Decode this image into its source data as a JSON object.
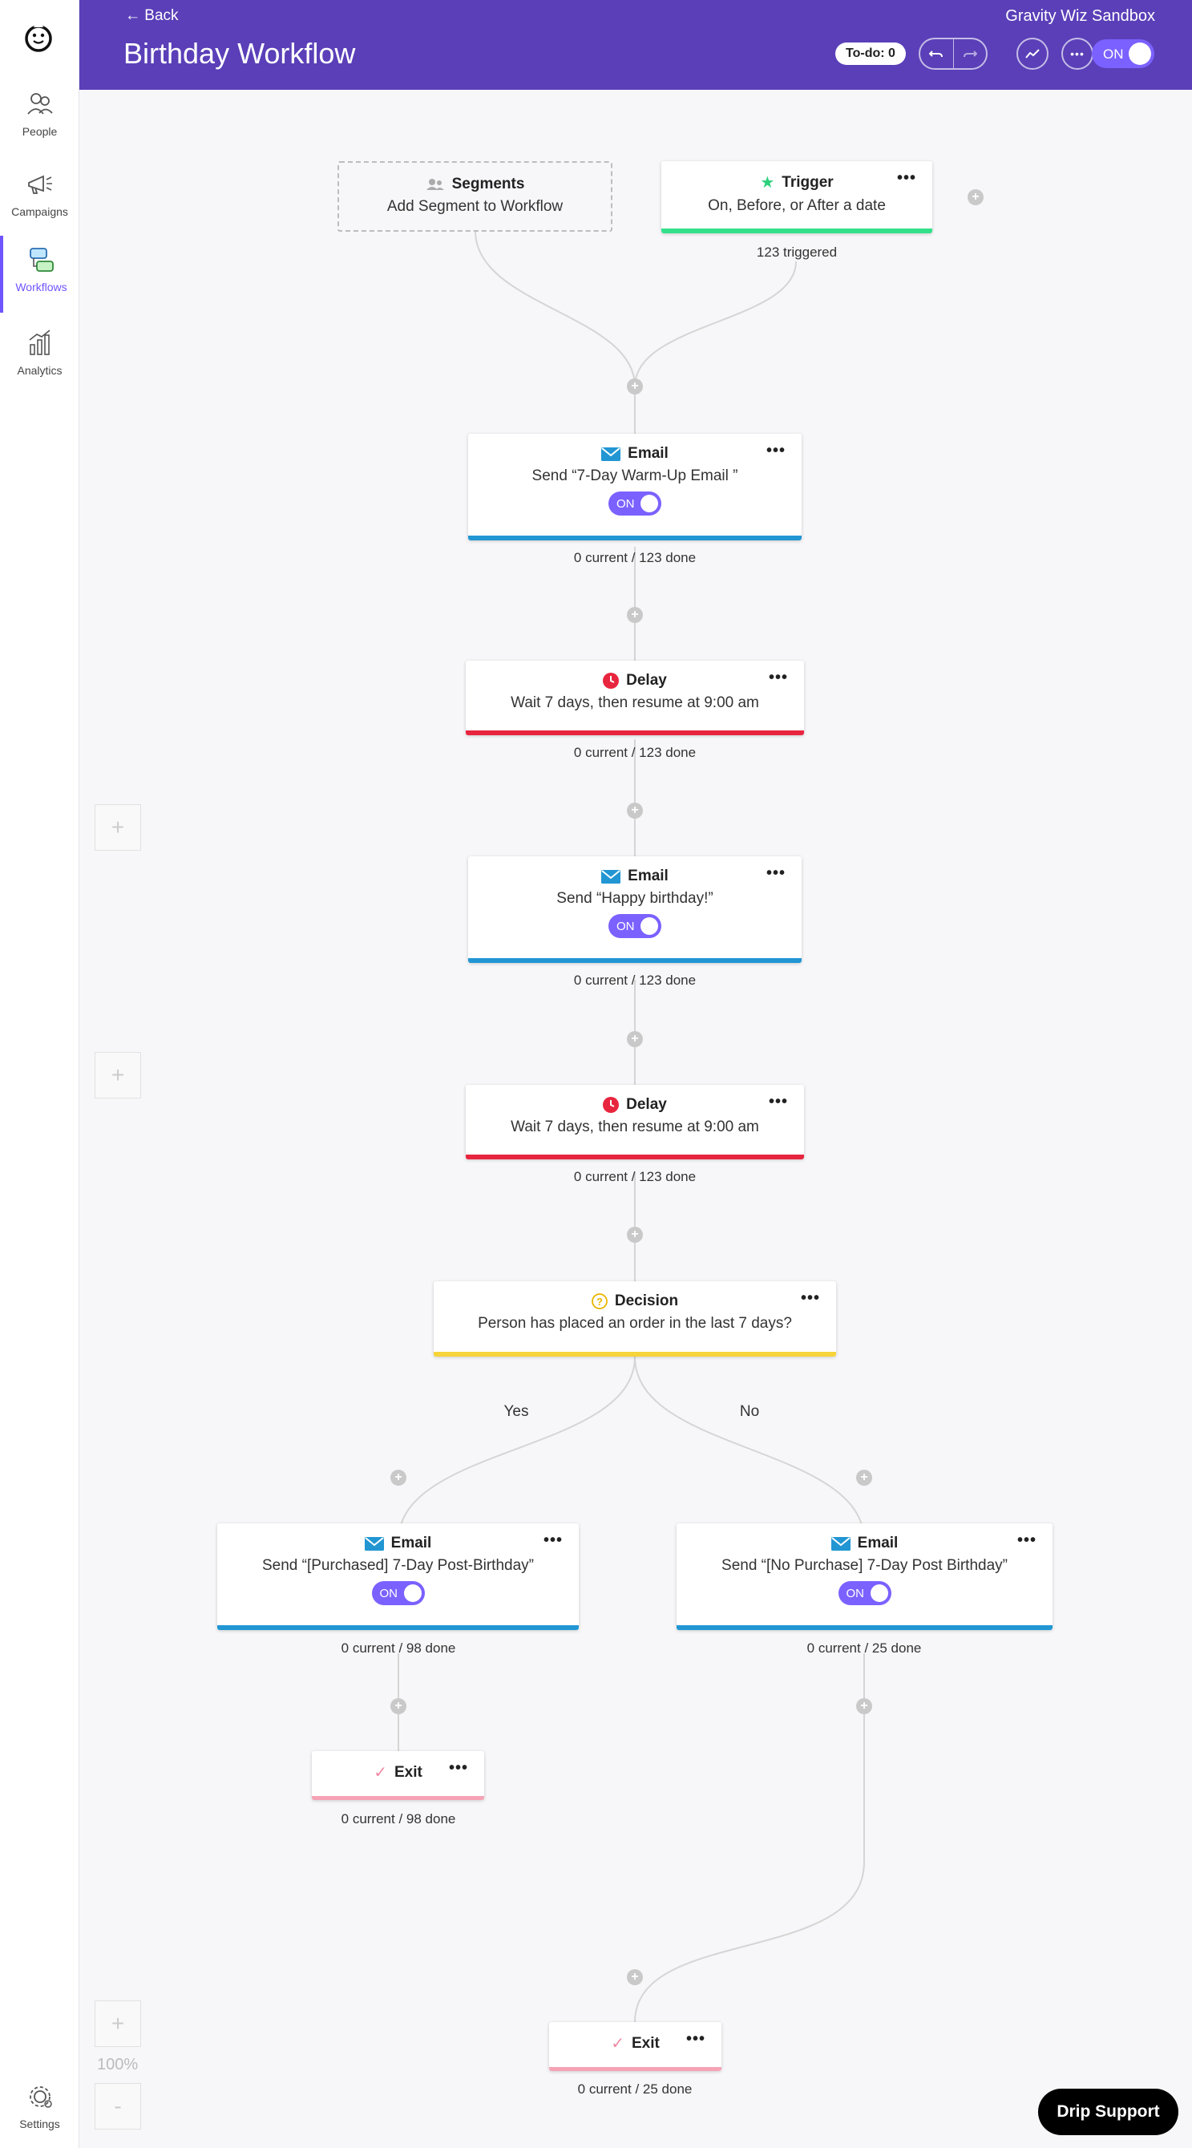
{
  "sidebar": {
    "items": [
      {
        "label": "People",
        "icon": "people-icon"
      },
      {
        "label": "Campaigns",
        "icon": "megaphone-icon"
      },
      {
        "label": "Workflows",
        "icon": "workflows-icon"
      },
      {
        "label": "Analytics",
        "icon": "analytics-icon"
      }
    ],
    "settings_label": "Settings"
  },
  "header": {
    "back": "Back",
    "title": "Birthday Workflow",
    "account": "Gravity Wiz Sandbox",
    "todo": "To-do: 0",
    "toggle": "ON"
  },
  "colors": {
    "header": "#5a3fb8",
    "accent": "#7b61ff",
    "email": "#2196d3",
    "delay": "#e8253e",
    "trigger": "#34e08a",
    "decision": "#f6d43a",
    "exit": "#f5a3b5"
  },
  "workflow": {
    "segments": {
      "title": "Segments",
      "subtitle": "Add Segment to Workflow"
    },
    "trigger": {
      "title": "Trigger",
      "subtitle": "On, Before, or After a date",
      "stat": "123 triggered"
    },
    "email1": {
      "title": "Email",
      "subtitle": "Send “7-Day Warm-Up Email ”",
      "toggle": "ON",
      "stat": "0 current / 123 done"
    },
    "delay1": {
      "title": "Delay",
      "subtitle": "Wait 7 days, then resume at 9:00 am",
      "stat": "0 current / 123 done"
    },
    "email2": {
      "title": "Email",
      "subtitle": "Send “Happy birthday!”",
      "toggle": "ON",
      "stat": "0 current / 123 done"
    },
    "delay2": {
      "title": "Delay",
      "subtitle": "Wait 7 days, then resume at 9:00 am",
      "stat": "0 current / 123 done"
    },
    "decision": {
      "title": "Decision",
      "subtitle": "Person has placed an order in the last 7 days?",
      "yes": "Yes",
      "no": "No"
    },
    "email_yes": {
      "title": "Email",
      "subtitle": "Send “[Purchased] 7-Day Post-Birthday”",
      "toggle": "ON",
      "stat": "0 current / 98 done"
    },
    "email_no": {
      "title": "Email",
      "subtitle": "Send “[No Purchase] 7-Day Post Birthday”",
      "toggle": "ON",
      "stat": "0 current / 25 done"
    },
    "exit_yes": {
      "title": "Exit",
      "stat": "0 current / 98 done"
    },
    "exit_no": {
      "title": "Exit",
      "stat": "0 current / 25 done"
    }
  },
  "zoom": {
    "level": "100%",
    "plus": "+",
    "minus": "-"
  },
  "ghost_plus": "+",
  "node_plus": "+",
  "menu_dots": "•••",
  "support": "Drip Support"
}
